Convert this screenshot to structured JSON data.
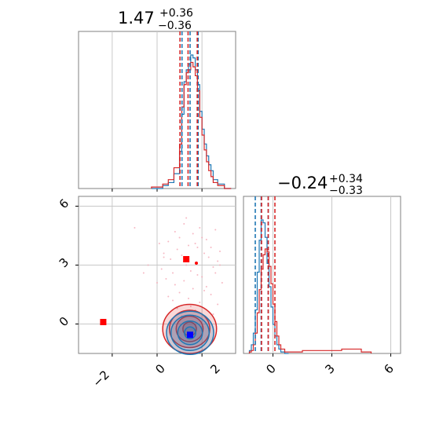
{
  "chart_data": [
    {
      "type": "histogram",
      "panel": "top-left marginal",
      "title": {
        "value": "1.47",
        "plus": "+0.36",
        "minus": "−0.36"
      },
      "xlim": [
        -3.5,
        3.5
      ],
      "grid": true,
      "series": [
        {
          "name": "",
          "color": "#1f77b4",
          "bin_edges": [
            -0.25,
            0.25,
            0.5,
            0.75,
            1.0,
            1.1,
            1.2,
            1.3,
            1.4,
            1.5,
            1.6,
            1.7,
            1.8,
            1.9,
            2.0,
            2.1,
            2.2,
            2.3,
            2.4,
            2.5,
            2.7,
            3.0,
            3.3
          ],
          "counts": [
            0,
            2,
            4,
            10,
            25,
            50,
            72,
            80,
            84,
            90,
            88,
            80,
            70,
            52,
            40,
            30,
            22,
            16,
            12,
            6,
            3,
            0
          ],
          "quantile_lines": [
            1.11,
            1.47,
            1.83
          ]
        },
        {
          "name": "",
          "color": "#d62728",
          "bin_edges": [
            -0.25,
            0.25,
            0.5,
            0.75,
            1.0,
            1.1,
            1.2,
            1.3,
            1.4,
            1.5,
            1.6,
            1.7,
            1.8,
            1.9,
            2.0,
            2.1,
            2.2,
            2.3,
            2.4,
            2.5,
            2.7,
            3.0,
            3.3
          ],
          "counts": [
            1,
            3,
            6,
            14,
            30,
            55,
            70,
            78,
            80,
            85,
            82,
            76,
            66,
            48,
            36,
            26,
            18,
            12,
            8,
            4,
            2,
            0
          ],
          "quantile_lines": [
            1.02,
            1.38,
            1.79
          ]
        }
      ]
    },
    {
      "type": "scatter",
      "panel": "bottom-left joint",
      "x_ticks": [
        "−2",
        "0",
        "2"
      ],
      "y_ticks": [
        "0",
        "3",
        "6"
      ],
      "xlim": [
        -3.5,
        3.5
      ],
      "ylim": [
        -1.5,
        6.5
      ],
      "grid": true,
      "points": [
        {
          "x": 1.3,
          "y": 3.3,
          "color": "#ff0000",
          "marker": "square"
        },
        {
          "x": -2.4,
          "y": 0.1,
          "color": "#ff0000",
          "marker": "square"
        },
        {
          "x": 1.47,
          "y": -0.55,
          "color": "#0000ff",
          "marker": "square"
        },
        {
          "x": 1.75,
          "y": 3.1,
          "color": "#ff0000",
          "marker": "dot"
        }
      ],
      "contours": [
        {
          "cx": 1.47,
          "cy": -0.45,
          "rx": [
            0.25,
            0.55,
            0.85,
            1.05
          ],
          "ry": [
            0.3,
            0.6,
            0.9,
            1.1
          ],
          "color": "#1f77b4",
          "fill": "#1f77b4"
        },
        {
          "cx": 1.45,
          "cy": -0.25,
          "rx": [
            0.3,
            0.6,
            0.9,
            1.2
          ],
          "ry": [
            0.35,
            0.65,
            0.95,
            1.25
          ],
          "color": "#d62728",
          "fill": "#d62728"
        }
      ],
      "scatter_cloud": {
        "color": "#f4a6b4",
        "x": [
          -1.0,
          0.8,
          1.2,
          1.6,
          2.2,
          2.6,
          0.5,
          1.0,
          1.9,
          2.4,
          0.1,
          0.9,
          1.4,
          2.0,
          2.8,
          0.3,
          1.1,
          1.7,
          2.3,
          2.7,
          0.6,
          1.3,
          2.1,
          2.5,
          0.2,
          0.7,
          1.5,
          1.8,
          2.6,
          0.4,
          1.2,
          2.0,
          2.9,
          0.8,
          1.6,
          2.2,
          -0.4,
          0.0,
          1.0,
          1.4,
          2.4,
          0.5,
          1.9,
          2.7,
          0.9,
          1.7,
          2.5,
          1.1,
          2.3,
          0.6,
          -0.6,
          0.3,
          1.8,
          2.1,
          1.3,
          2.8,
          0.7,
          1.5
        ],
        "y": [
          4.9,
          4.7,
          5.1,
          4.6,
          4.3,
          4.8,
          4.2,
          4.4,
          4.9,
          3.9,
          4.1,
          3.8,
          4.0,
          4.4,
          3.7,
          3.6,
          3.5,
          4.1,
          3.4,
          3.2,
          3.3,
          3.0,
          3.6,
          2.9,
          2.8,
          2.6,
          2.7,
          2.5,
          2.6,
          2.3,
          2.2,
          2.4,
          2.1,
          2.0,
          1.8,
          1.9,
          3.0,
          2.1,
          1.6,
          1.3,
          1.5,
          1.4,
          1.1,
          1.0,
          0.8,
          0.7,
          0.5,
          0.4,
          0.2,
          0.1,
          2.6,
          3.4,
          3.9,
          1.7,
          5.4,
          3.0,
          1.2,
          0.9
        ]
      }
    },
    {
      "type": "histogram",
      "panel": "bottom-right marginal",
      "title": {
        "value": "−0.24",
        "plus": "+0.34",
        "minus": "−0.33"
      },
      "x_ticks": [
        "0",
        "3",
        "6"
      ],
      "xlim": [
        -1.5,
        6.5
      ],
      "grid": true,
      "series": [
        {
          "name": "",
          "color": "#1f77b4",
          "bin_edges": [
            -1.2,
            -1.1,
            -1.0,
            -0.9,
            -0.8,
            -0.7,
            -0.6,
            -0.5,
            -0.4,
            -0.3,
            -0.2,
            -0.1,
            0.0,
            0.1,
            0.2,
            0.3,
            0.4,
            0.6,
            0.8
          ],
          "counts": [
            2,
            6,
            14,
            30,
            56,
            78,
            92,
            90,
            80,
            62,
            46,
            32,
            20,
            12,
            6,
            3,
            1,
            0
          ],
          "quantile_lines": [
            -0.9,
            -0.6,
            -0.24
          ]
        },
        {
          "name": "",
          "color": "#d62728",
          "bin_edges": [
            -1.2,
            -1.1,
            -1.0,
            -0.9,
            -0.8,
            -0.7,
            -0.6,
            -0.5,
            -0.4,
            -0.3,
            -0.2,
            -0.1,
            0.0,
            0.1,
            0.2,
            0.3,
            0.4,
            0.6,
            0.8,
            1.5,
            2.5,
            3.5,
            4.5,
            5.0
          ],
          "counts": [
            1,
            2,
            6,
            14,
            28,
            44,
            58,
            68,
            72,
            70,
            60,
            48,
            34,
            22,
            12,
            6,
            3,
            1,
            1,
            2,
            2,
            3,
            1
          ],
          "quantile_lines": [
            -0.58,
            -0.24,
            0.1
          ]
        }
      ]
    }
  ]
}
